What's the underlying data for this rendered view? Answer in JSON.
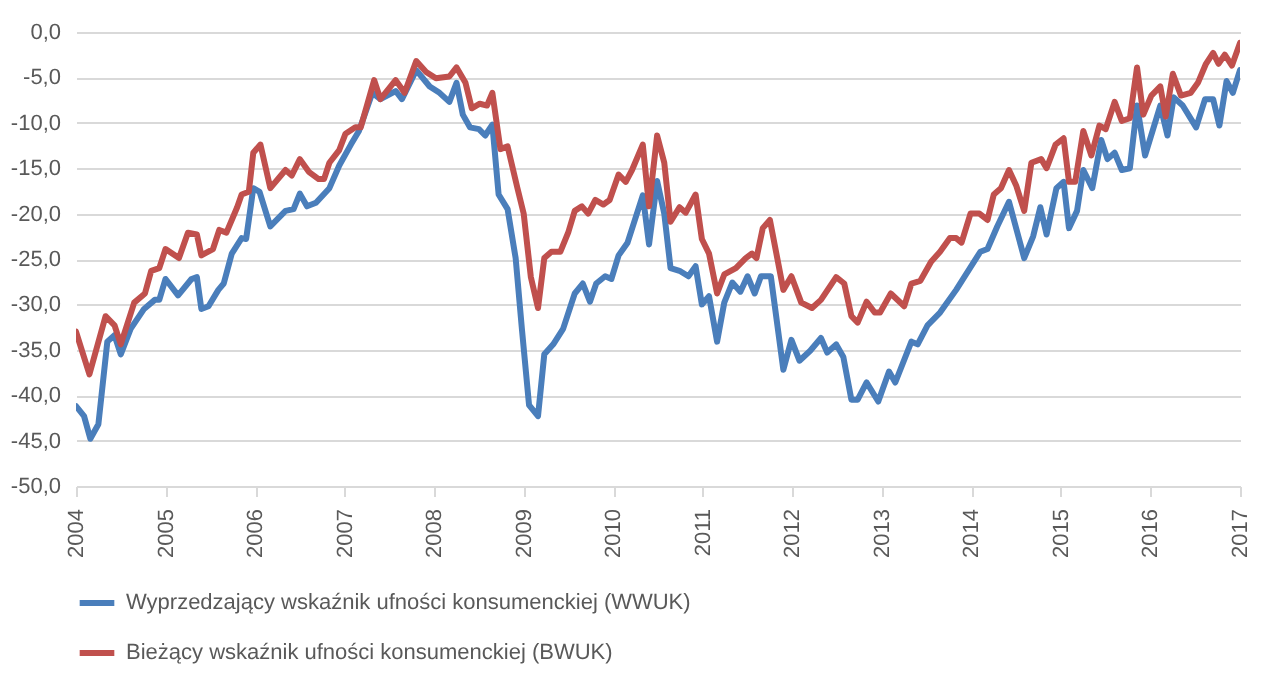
{
  "chart_data": {
    "type": "line",
    "legend": "bottom",
    "grid": "y",
    "marker": "none",
    "line_style": "solid",
    "xlim": [
      2004,
      2017
    ],
    "xticks": [
      2004,
      2005,
      2006,
      2007,
      2008,
      2009,
      2010,
      2011,
      2012,
      2013,
      2014,
      2015,
      2016,
      2017
    ],
    "ylim": [
      -50,
      0
    ],
    "yticks": [
      {
        "value": -50,
        "label": "-50,0"
      },
      {
        "value": -45,
        "label": "-45,0"
      },
      {
        "value": -40,
        "label": "-40,0"
      },
      {
        "value": -35,
        "label": "-35,0"
      },
      {
        "value": -30,
        "label": "-30,0"
      },
      {
        "value": -25,
        "label": "-25,0"
      },
      {
        "value": -20,
        "label": "-20,0"
      },
      {
        "value": -15,
        "label": "-15,0"
      },
      {
        "value": -10,
        "label": "-10,0"
      },
      {
        "value": -5,
        "label": "-5,0"
      },
      {
        "value": 0,
        "label": "0,0"
      }
    ],
    "series": [
      {
        "name": "Wyprzedzający wskaźnik ufności konsumenckiej (WWUK)",
        "color": "#4a7ebb",
        "x": [
          2004.0,
          2004.09,
          2004.16,
          2004.25,
          2004.35,
          2004.43,
          2004.5,
          2004.61,
          2004.76,
          2004.88,
          2004.93,
          2005.0,
          2005.14,
          2005.29,
          2005.35,
          2005.4,
          2005.48,
          2005.59,
          2005.65,
          2005.74,
          2005.85,
          2005.9,
          2005.98,
          2006.05,
          2006.17,
          2006.34,
          2006.43,
          2006.5,
          2006.58,
          2006.68,
          2006.83,
          2006.94,
          2007.07,
          2007.16,
          2007.31,
          2007.4,
          2007.57,
          2007.64,
          2007.8,
          2007.95,
          2008.06,
          2008.17,
          2008.25,
          2008.32,
          2008.4,
          2008.5,
          2008.57,
          2008.65,
          2008.72,
          2008.82,
          2008.91,
          2008.98,
          2009.06,
          2009.16,
          2009.23,
          2009.33,
          2009.44,
          2009.57,
          2009.66,
          2009.74,
          2009.81,
          2009.91,
          2009.98,
          2010.06,
          2010.16,
          2010.33,
          2010.4,
          2010.49,
          2010.57,
          2010.64,
          2010.74,
          2010.84,
          2010.92,
          2010.99,
          2011.07,
          2011.16,
          2011.24,
          2011.33,
          2011.42,
          2011.5,
          2011.58,
          2011.65,
          2011.76,
          2011.9,
          2011.99,
          2012.08,
          2012.2,
          2012.32,
          2012.39,
          2012.49,
          2012.57,
          2012.66,
          2012.73,
          2012.83,
          2012.96,
          2013.08,
          2013.15,
          2013.33,
          2013.4,
          2013.51,
          2013.65,
          2013.83,
          2014.1,
          2014.18,
          2014.29,
          2014.42,
          2014.59,
          2014.69,
          2014.77,
          2014.84,
          2014.95,
          2015.03,
          2015.09,
          2015.18,
          2015.25,
          2015.35,
          2015.45,
          2015.52,
          2015.6,
          2015.68,
          2015.77,
          2015.85,
          2015.94,
          2016.11,
          2016.19,
          2016.26,
          2016.36,
          2016.51,
          2016.61,
          2016.7,
          2016.77,
          2016.85,
          2016.92,
          2017.0
        ],
        "values": [
          -41.2,
          -42.3,
          -44.8,
          -43.2,
          -34.1,
          -33.4,
          -35.5,
          -32.7,
          -30.5,
          -29.5,
          -29.5,
          -27.2,
          -29.0,
          -27.2,
          -27.0,
          -30.5,
          -30.2,
          -28.4,
          -27.7,
          -24.4,
          -22.7,
          -22.8,
          -17.2,
          -17.6,
          -21.4,
          -19.7,
          -19.5,
          -17.8,
          -19.2,
          -18.8,
          -17.2,
          -14.7,
          -12.4,
          -10.9,
          -6.7,
          -7.4,
          -6.5,
          -7.4,
          -4.2,
          -6.0,
          -6.7,
          -7.7,
          -5.6,
          -9.1,
          -10.5,
          -10.7,
          -11.4,
          -10.2,
          -17.9,
          -19.5,
          -24.9,
          -32.7,
          -41.1,
          -42.3,
          -35.5,
          -34.4,
          -32.7,
          -28.8,
          -27.7,
          -29.7,
          -27.7,
          -26.9,
          -27.2,
          -24.6,
          -23.2,
          -18.0,
          -23.4,
          -16.4,
          -20.0,
          -26.0,
          -26.3,
          -26.9,
          -25.8,
          -30.0,
          -29.1,
          -34.1,
          -29.8,
          -27.6,
          -28.6,
          -26.9,
          -28.8,
          -26.9,
          -26.9,
          -37.2,
          -33.9,
          -36.2,
          -35.1,
          -33.7,
          -35.3,
          -34.4,
          -35.8,
          -40.5,
          -40.5,
          -38.6,
          -40.7,
          -37.4,
          -38.6,
          -34.1,
          -34.4,
          -32.3,
          -30.9,
          -28.4,
          -24.2,
          -23.9,
          -21.4,
          -18.7,
          -24.9,
          -22.5,
          -19.3,
          -22.3,
          -17.2,
          -16.5,
          -21.6,
          -19.7,
          -15.2,
          -17.2,
          -11.9,
          -14.0,
          -13.3,
          -15.2,
          -15.0,
          -8.1,
          -13.6,
          -8.1,
          -11.4,
          -7.2,
          -8.1,
          -10.5,
          -7.4,
          -7.4,
          -10.3,
          -5.4,
          -6.7,
          -4.2
        ]
      },
      {
        "name": "Bieżący wskaźnik ufności konsumenckiej (BWUK)",
        "color": "#c0504d",
        "x": [
          2004.0,
          2004.15,
          2004.33,
          2004.43,
          2004.5,
          2004.65,
          2004.77,
          2004.84,
          2004.93,
          2005.0,
          2005.15,
          2005.25,
          2005.35,
          2005.4,
          2005.53,
          2005.6,
          2005.68,
          2005.8,
          2005.85,
          2005.93,
          2005.98,
          2006.06,
          2006.17,
          2006.34,
          2006.41,
          2006.5,
          2006.6,
          2006.71,
          2006.77,
          2006.83,
          2006.94,
          2007.01,
          2007.12,
          2007.18,
          2007.33,
          2007.4,
          2007.57,
          2007.67,
          2007.8,
          2007.91,
          2008.02,
          2008.17,
          2008.25,
          2008.35,
          2008.42,
          2008.51,
          2008.59,
          2008.65,
          2008.74,
          2008.82,
          2008.93,
          2009.0,
          2009.08,
          2009.16,
          2009.23,
          2009.31,
          2009.41,
          2009.5,
          2009.57,
          2009.65,
          2009.72,
          2009.8,
          2009.89,
          2009.96,
          2010.06,
          2010.14,
          2010.21,
          2010.33,
          2010.4,
          2010.49,
          2010.57,
          2010.64,
          2010.74,
          2010.81,
          2010.92,
          2010.99,
          2011.07,
          2011.16,
          2011.24,
          2011.37,
          2011.48,
          2011.55,
          2011.6,
          2011.67,
          2011.75,
          2011.9,
          2011.99,
          2012.1,
          2012.22,
          2012.32,
          2012.49,
          2012.58,
          2012.66,
          2012.73,
          2012.83,
          2012.92,
          2012.98,
          2013.1,
          2013.25,
          2013.33,
          2013.43,
          2013.55,
          2013.65,
          2013.76,
          2013.83,
          2013.89,
          2013.99,
          2014.09,
          2014.18,
          2014.25,
          2014.33,
          2014.42,
          2014.5,
          2014.59,
          2014.67,
          2014.78,
          2014.84,
          2014.94,
          2015.03,
          2015.09,
          2015.16,
          2015.25,
          2015.34,
          2015.43,
          2015.5,
          2015.6,
          2015.68,
          2015.77,
          2015.85,
          2015.92,
          2016.01,
          2016.11,
          2016.17,
          2016.25,
          2016.34,
          2016.45,
          2016.53,
          2016.62,
          2016.7,
          2016.76,
          2016.83,
          2016.91,
          2017.0
        ],
        "values": [
          -33.0,
          -37.7,
          -31.3,
          -32.3,
          -34.4,
          -29.8,
          -28.8,
          -26.3,
          -26.0,
          -23.9,
          -24.9,
          -22.1,
          -22.3,
          -24.6,
          -23.9,
          -21.8,
          -22.1,
          -19.3,
          -17.9,
          -17.6,
          -13.3,
          -12.4,
          -17.2,
          -15.2,
          -15.8,
          -14.0,
          -15.4,
          -16.2,
          -16.2,
          -14.4,
          -13.0,
          -11.2,
          -10.5,
          -10.5,
          -5.3,
          -7.4,
          -5.3,
          -6.7,
          -3.2,
          -4.4,
          -5.1,
          -4.9,
          -3.9,
          -5.6,
          -8.4,
          -7.9,
          -8.1,
          -6.7,
          -12.9,
          -12.6,
          -17.2,
          -20.0,
          -27.0,
          -30.4,
          -24.9,
          -24.2,
          -24.2,
          -22.0,
          -19.7,
          -19.2,
          -20.0,
          -18.5,
          -19.0,
          -18.5,
          -15.7,
          -16.5,
          -15.2,
          -12.4,
          -19.2,
          -11.4,
          -14.4,
          -20.9,
          -19.3,
          -19.9,
          -17.9,
          -22.8,
          -24.4,
          -28.8,
          -26.7,
          -26.0,
          -24.9,
          -24.4,
          -24.9,
          -21.6,
          -20.7,
          -28.4,
          -26.9,
          -29.8,
          -30.4,
          -29.5,
          -27.0,
          -27.7,
          -31.3,
          -32.0,
          -29.7,
          -30.9,
          -30.9,
          -28.8,
          -30.2,
          -27.7,
          -27.4,
          -25.3,
          -24.2,
          -22.7,
          -22.7,
          -23.2,
          -20.0,
          -20.0,
          -20.7,
          -17.9,
          -17.2,
          -15.2,
          -16.9,
          -19.7,
          -14.4,
          -14.0,
          -15.0,
          -12.4,
          -11.7,
          -16.5,
          -16.5,
          -10.9,
          -13.6,
          -10.3,
          -10.7,
          -7.7,
          -9.8,
          -9.5,
          -3.9,
          -9.1,
          -7.0,
          -6.0,
          -9.3,
          -4.6,
          -7.0,
          -6.7,
          -5.6,
          -3.5,
          -2.3,
          -3.5,
          -2.5,
          -3.7,
          -1.2
        ]
      }
    ]
  }
}
